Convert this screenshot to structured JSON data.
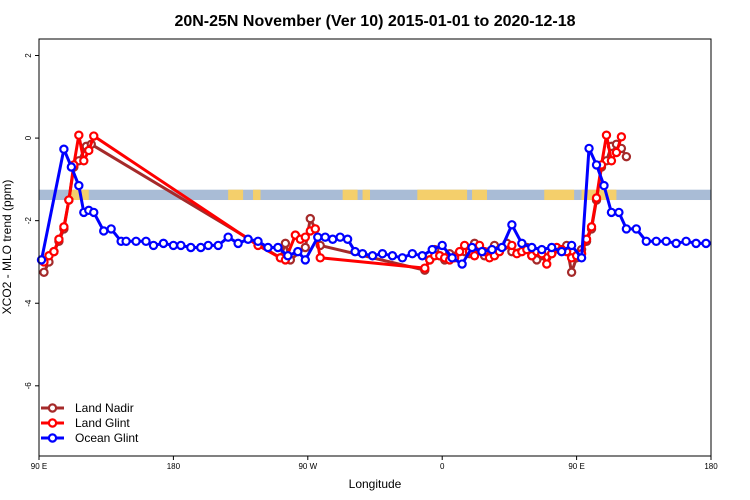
{
  "chart_data": {
    "type": "line",
    "title": "20N-25N November (Ver 10)   2015-01-01 to 2020-12-18",
    "xlabel": "Longitude",
    "ylabel": "XCO2 - MLO trend (ppm)",
    "xlim": [
      -90,
      180
    ],
    "ylim": [
      -7.7,
      2.4
    ],
    "x_ticks": [
      {
        "value": -90,
        "label": "90 E"
      },
      {
        "value": -36,
        "label": "180"
      },
      {
        "value": 18,
        "label": "90 W"
      },
      {
        "value": 72,
        "label": "0"
      },
      {
        "value": 126,
        "label": "90 E"
      },
      {
        "value": 180,
        "label": "180"
      }
    ],
    "y_ticks": [
      {
        "value": 2,
        "label": "2"
      },
      {
        "value": 0,
        "label": "0"
      },
      {
        "value": -2,
        "label": "-2"
      },
      {
        "value": -4,
        "label": "-4"
      },
      {
        "value": -6,
        "label": "-6"
      }
    ],
    "land_band": {
      "ymin": -1.5,
      "ymax": -1.25,
      "ocean_color": "#a9bcd6",
      "land_color": "#f4cf6b"
    },
    "legend": {
      "position": "bottom-left"
    },
    "series": [
      {
        "name": "Land Nadir",
        "color": "#a52a2a",
        "x": [
          -88,
          -86,
          -84,
          -82,
          -80,
          -78,
          -76,
          -74,
          -71,
          -69,
          7,
          9,
          11,
          17,
          19,
          21,
          23,
          65,
          67,
          69,
          71,
          73,
          75,
          81,
          83,
          85,
          87,
          89,
          91,
          93,
          95,
          98,
          100,
          106,
          108,
          110,
          114,
          116,
          119,
          122,
          124,
          126,
          128,
          130,
          132,
          134,
          136,
          138,
          140,
          142,
          144,
          146
        ],
        "y": [
          -3.25,
          -3.0,
          -2.75,
          -2.5,
          -2.2,
          -1.5,
          -0.7,
          -0.55,
          -0.2,
          -0.15,
          -2.9,
          -2.55,
          -2.95,
          -2.65,
          -1.95,
          -2.2,
          -2.6,
          -3.2,
          -2.95,
          -2.7,
          -2.85,
          -2.95,
          -2.8,
          -2.75,
          -2.8,
          -2.55,
          -2.65,
          -2.85,
          -2.75,
          -2.6,
          -2.7,
          -2.55,
          -2.75,
          -2.65,
          -2.85,
          -2.95,
          -2.9,
          -2.8,
          -2.7,
          -2.6,
          -3.25,
          -2.9,
          -2.7,
          -2.5,
          -2.2,
          -1.5,
          -0.7,
          -0.55,
          -0.2,
          -0.15,
          -0.25,
          -0.45
        ]
      },
      {
        "name": "Land Glint",
        "color": "#ff0000",
        "x": [
          -88,
          -86,
          -84,
          -82,
          -80,
          -78,
          -76,
          -74,
          -72,
          -70,
          -68,
          -2,
          7,
          9,
          13,
          15,
          17,
          19,
          21,
          23,
          65,
          67,
          69,
          71,
          73,
          75,
          77,
          79,
          81,
          83,
          85,
          87,
          89,
          91,
          93,
          95,
          100,
          102,
          104,
          106,
          108,
          110,
          112,
          114,
          116,
          118,
          120,
          122,
          124,
          126,
          128,
          130,
          132,
          134,
          136,
          138,
          140,
          142,
          144
        ],
        "y": [
          -3.0,
          -2.85,
          -2.75,
          -2.45,
          -2.15,
          -1.5,
          -0.65,
          0.07,
          -0.55,
          -0.3,
          0.05,
          -2.6,
          -2.9,
          -2.95,
          -2.35,
          -2.45,
          -2.4,
          -2.25,
          -2.2,
          -2.9,
          -3.15,
          -2.95,
          -2.85,
          -2.85,
          -2.9,
          -2.95,
          -2.9,
          -2.75,
          -2.6,
          -2.75,
          -2.85,
          -2.6,
          -2.75,
          -2.9,
          -2.85,
          -2.75,
          -2.6,
          -2.8,
          -2.75,
          -2.7,
          -2.85,
          -2.75,
          -2.8,
          -3.05,
          -2.8,
          -2.65,
          -2.7,
          -2.75,
          -2.9,
          -2.85,
          -2.8,
          -2.45,
          -2.15,
          -1.45,
          -0.65,
          0.07,
          -0.55,
          -0.35,
          0.03
        ]
      },
      {
        "name": "Ocean Glint",
        "color": "#0000ff",
        "x": [
          -89,
          -80,
          -77,
          -74,
          -72,
          -70,
          -68,
          -64,
          -61,
          -57,
          -55,
          -51,
          -47,
          -44,
          -40,
          -36,
          -33,
          -29,
          -25,
          -22,
          -18,
          -14,
          -10,
          -6,
          -2,
          2,
          6,
          10,
          14,
          17,
          22,
          25,
          28,
          31,
          34,
          37,
          40,
          44,
          48,
          52,
          56,
          60,
          64,
          68,
          72,
          76,
          80,
          84,
          88,
          92,
          96,
          100,
          104,
          108,
          112,
          116,
          120,
          124,
          128,
          131,
          134,
          137,
          140,
          143,
          146,
          150,
          154,
          158,
          162,
          166,
          170,
          174,
          178
        ],
        "y": [
          -2.95,
          -0.27,
          -0.7,
          -1.15,
          -1.8,
          -1.75,
          -1.8,
          -2.25,
          -2.2,
          -2.5,
          -2.5,
          -2.5,
          -2.5,
          -2.6,
          -2.55,
          -2.6,
          -2.6,
          -2.65,
          -2.65,
          -2.6,
          -2.6,
          -2.4,
          -2.55,
          -2.45,
          -2.5,
          -2.65,
          -2.65,
          -2.85,
          -2.75,
          -2.95,
          -2.4,
          -2.4,
          -2.45,
          -2.4,
          -2.45,
          -2.75,
          -2.8,
          -2.85,
          -2.8,
          -2.85,
          -2.9,
          -2.8,
          -2.85,
          -2.7,
          -2.6,
          -2.9,
          -3.05,
          -2.65,
          -2.75,
          -2.7,
          -2.65,
          -2.1,
          -2.55,
          -2.65,
          -2.7,
          -2.65,
          -2.75,
          -2.6,
          -2.9,
          -0.25,
          -0.65,
          -1.15,
          -1.8,
          -1.8,
          -2.2,
          -2.2,
          -2.5,
          -2.5,
          -2.5,
          -2.55,
          -2.5,
          -2.55,
          -2.55
        ]
      }
    ]
  }
}
